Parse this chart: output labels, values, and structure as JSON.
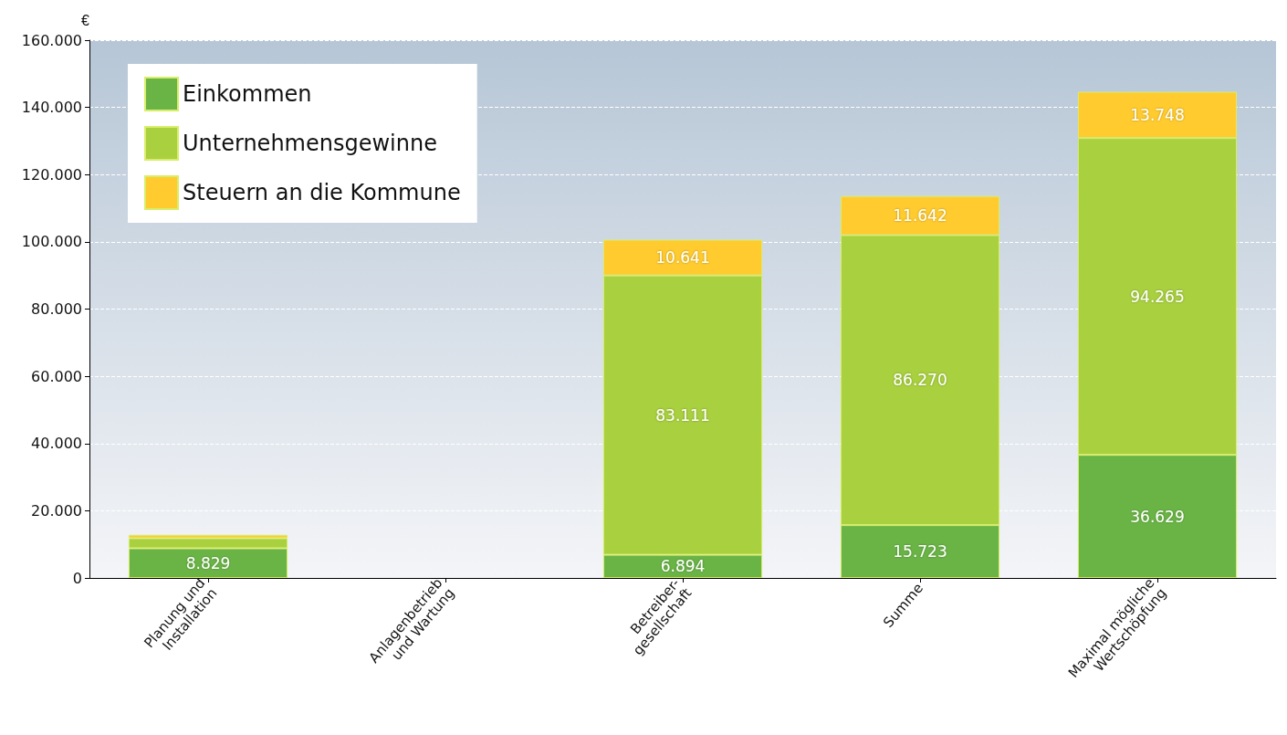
{
  "chart_data": {
    "type": "bar",
    "stacked": true,
    "ylabel": "€",
    "categories": [
      "Planung und\nInstallation",
      "Anlagenbetrieb\nund Wartung",
      "Betreiber-\ngesellschaft",
      "Summe",
      "Maximal mögliche\nWertschöpfung"
    ],
    "series": [
      {
        "name": "Einkommen",
        "color": "#6ab446",
        "values": [
          8829,
          null,
          6894,
          15723,
          36629
        ],
        "value_labels": [
          "8.829",
          null,
          "6.894",
          "15.723",
          "36.629"
        ]
      },
      {
        "name": "Unternehmensgewinne",
        "color": "#a9d03f",
        "values": [
          3000,
          null,
          83111,
          86270,
          94265
        ],
        "value_labels": [
          null,
          null,
          "83.111",
          "86.270",
          "94.265"
        ]
      },
      {
        "name": "Steuern an die Kommune",
        "color": "#ffcb2e",
        "values": [
          1000,
          null,
          10641,
          11642,
          13748
        ],
        "value_labels": [
          null,
          null,
          "10.641",
          "11.642",
          "13.748"
        ]
      }
    ],
    "ylim": [
      0,
      160000
    ],
    "yticks": [
      {
        "value": 0,
        "label": "0"
      },
      {
        "value": 20000,
        "label": "20.000"
      },
      {
        "value": 40000,
        "label": "40.000"
      },
      {
        "value": 60000,
        "label": "60.000"
      },
      {
        "value": 80000,
        "label": "80.000"
      },
      {
        "value": 100000,
        "label": "100.000"
      },
      {
        "value": 120000,
        "label": "120.000"
      },
      {
        "value": 140000,
        "label": "140.000"
      },
      {
        "value": 160000,
        "label": "160.000"
      }
    ],
    "grid": "y",
    "legend": "top left"
  }
}
